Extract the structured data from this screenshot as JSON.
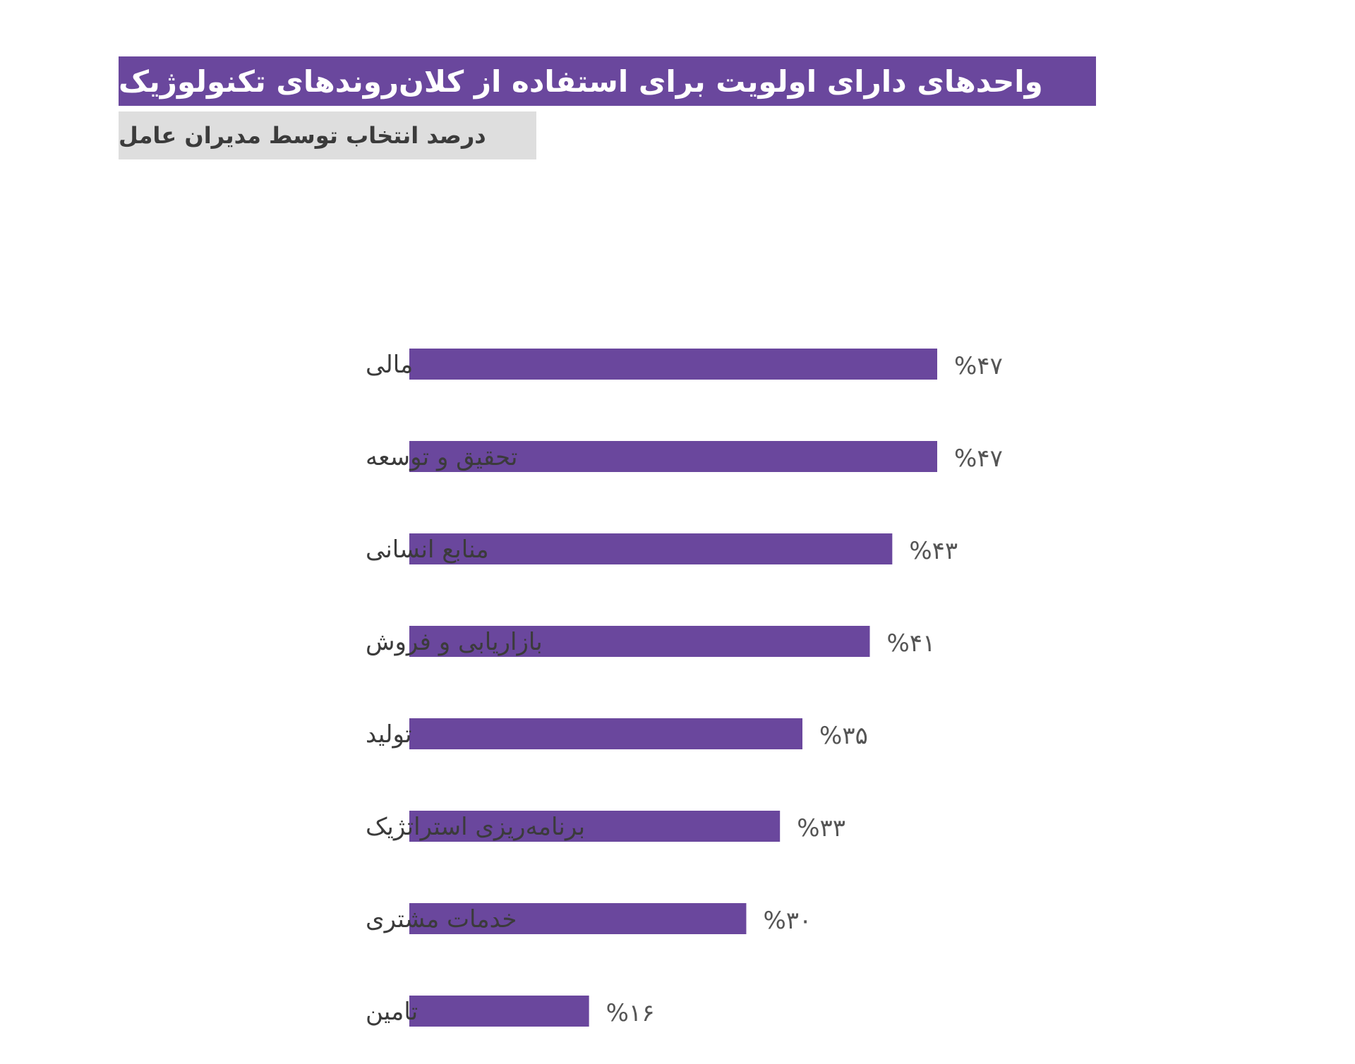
{
  "header": {
    "title": "واحدهای دارای اولویت برای استفاده از کلان‌روندهای تکنولوژیک",
    "subtitle": "درصد انتخاب توسط مدیران عامل"
  },
  "colors": {
    "bar": "#6a479d",
    "title_bg": "#6a479d",
    "subtitle_bg": "#dedede",
    "label_text": "#3b3b3b",
    "value_text": "#555555"
  },
  "chart_data": {
    "type": "bar",
    "orientation": "horizontal",
    "title": "واحدهای دارای اولویت برای استفاده از کلان‌روندهای تکنولوژیک",
    "subtitle": "درصد انتخاب توسط مدیران عامل",
    "categories": [
      "مالی",
      "تحقیق و توسعه",
      "منابع انسانی",
      "بازاریابی و فروش",
      "تولید",
      "برنامه‌ریزی استراتژیک",
      "خدمات مشتری",
      "تامین"
    ],
    "values": [
      47,
      47,
      43,
      41,
      35,
      33,
      30,
      16
    ],
    "value_labels": [
      "%۴۷",
      "%۴۷",
      "%۴۳",
      "%۴۱",
      "%۳۵",
      "%۳۳",
      "%۳۰",
      "%۱۶"
    ],
    "unit": "%",
    "xlim": [
      0,
      47
    ],
    "grid": false,
    "legend": "none"
  }
}
